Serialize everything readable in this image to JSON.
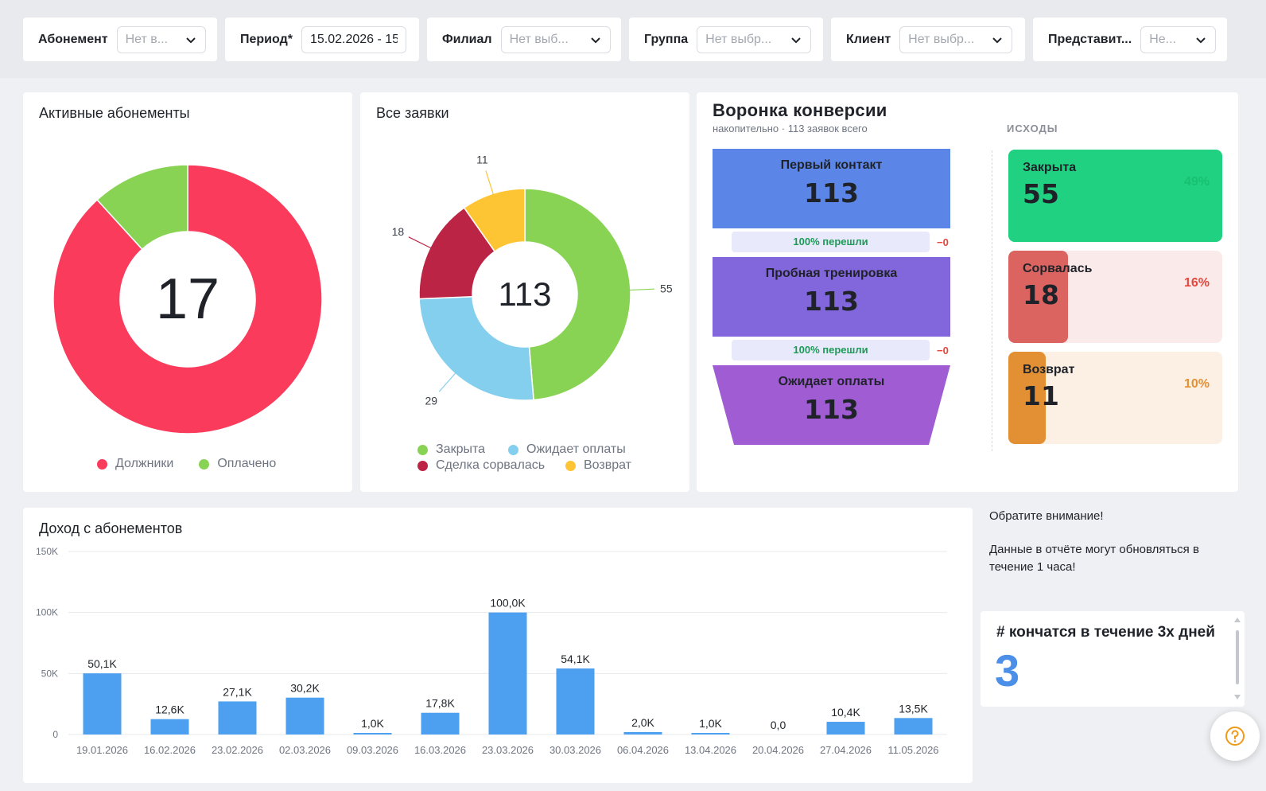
{
  "filters": [
    {
      "label": "Абонемент",
      "value": "Нет в..."
    },
    {
      "label": "Период*",
      "value": "15.02.2026 - 15"
    },
    {
      "label": "Филиал",
      "value": "Нет выб..."
    },
    {
      "label": "Группа",
      "value": "Нет выбр..."
    },
    {
      "label": "Клиент",
      "value": "Нет выбр..."
    },
    {
      "label": "Представит...",
      "value": "Не..."
    }
  ],
  "active_subs": {
    "title": "Активные абонементы",
    "center": "17",
    "legend": [
      {
        "label": "Должники",
        "color": "#fa3b5c"
      },
      {
        "label": "Оплачено",
        "color": "#88d353"
      }
    ]
  },
  "all_requests": {
    "title": "Все заявки",
    "center": "113",
    "legend": [
      {
        "label": "Закрыта",
        "color": "#88d353"
      },
      {
        "label": "Ожидает оплаты",
        "color": "#84cfee"
      },
      {
        "label": "Сделка сорвалась",
        "color": "#bc2445"
      },
      {
        "label": "Возврат",
        "color": "#fdc434"
      }
    ]
  },
  "funnel": {
    "title": "Воронка конверсии",
    "subtitle": "накопительно · 113 заявок всего",
    "stages": [
      {
        "label": "Первый контакт",
        "count": "113",
        "color": "#5b86e8"
      },
      {
        "label": "Пробная тренировка",
        "count": "113",
        "color": "#8266dc"
      },
      {
        "label": "Ожидает оплаты",
        "count": "113",
        "color": "#a05dd3"
      }
    ],
    "transitions": [
      {
        "label": "100% перешли",
        "delta": "−0"
      },
      {
        "label": "100% перешли",
        "delta": "−0"
      }
    ],
    "outcomes_title": "ИСХОДЫ",
    "outcomes": [
      {
        "label": "Закрыта",
        "count": "55",
        "pct": "49%",
        "share": 0.49,
        "fill": "#1fd181",
        "bg": "#1fd181",
        "pct_color": "#18c070"
      },
      {
        "label": "Сорвалась",
        "count": "18",
        "pct": "16%",
        "share": 0.16,
        "fill": "#dc6460",
        "bg": "#fbeaea",
        "pct_color": "#e5473d"
      },
      {
        "label": "Возврат",
        "count": "11",
        "pct": "10%",
        "share": 0.1,
        "fill": "#e39034",
        "bg": "#fcf0e4",
        "pct_color": "#e39034"
      }
    ]
  },
  "income": {
    "title": "Доход с абонементов"
  },
  "note": {
    "line1": "Обратите внимание!",
    "line2": "Данные в отчёте могут обновляться в течение 1 часа!"
  },
  "kpi": {
    "title": "# кончатся в течение 3х дней",
    "value": "3"
  },
  "chart_data": [
    {
      "type": "pie",
      "title": "Активные абонементы",
      "center_label": "17",
      "labels": [
        "Должники",
        "Оплачено"
      ],
      "values": [
        15,
        2
      ],
      "colors": [
        "#fa3b5c",
        "#88d353"
      ]
    },
    {
      "type": "pie",
      "title": "Все заявки",
      "center_label": "113",
      "labels": [
        "Закрыта",
        "Ожидает оплаты",
        "Сделка сорвалась",
        "Возврат"
      ],
      "values": [
        55,
        29,
        18,
        11
      ],
      "data_labels": [
        "55",
        "29",
        "18",
        "11"
      ],
      "colors": [
        "#88d353",
        "#84cfee",
        "#bc2445",
        "#fdc434"
      ]
    },
    {
      "type": "bar",
      "title": "Доход с абонементов",
      "categories": [
        "19.01.2026",
        "16.02.2026",
        "23.02.2026",
        "02.03.2026",
        "09.03.2026",
        "16.03.2026",
        "23.03.2026",
        "30.03.2026",
        "06.04.2026",
        "13.04.2026",
        "20.04.2026",
        "27.04.2026",
        "11.05.2026"
      ],
      "values": [
        50100,
        12600,
        27100,
        30200,
        1000,
        17800,
        100000,
        54100,
        2000,
        1000,
        0,
        10400,
        13500
      ],
      "data_labels": [
        "50,1K",
        "12,6K",
        "27,1K",
        "30,2K",
        "1,0K",
        "17,8K",
        "100,0K",
        "54,1K",
        "2,0K",
        "1,0K",
        "0,0",
        "10,4K",
        "13,5K"
      ],
      "ylim": [
        0,
        150000
      ],
      "yticks": [
        0,
        50000,
        100000,
        150000
      ],
      "ytick_labels": [
        "0",
        "50K",
        "100K",
        "150K"
      ],
      "color": "#4d9ff0",
      "grid": true
    }
  ]
}
